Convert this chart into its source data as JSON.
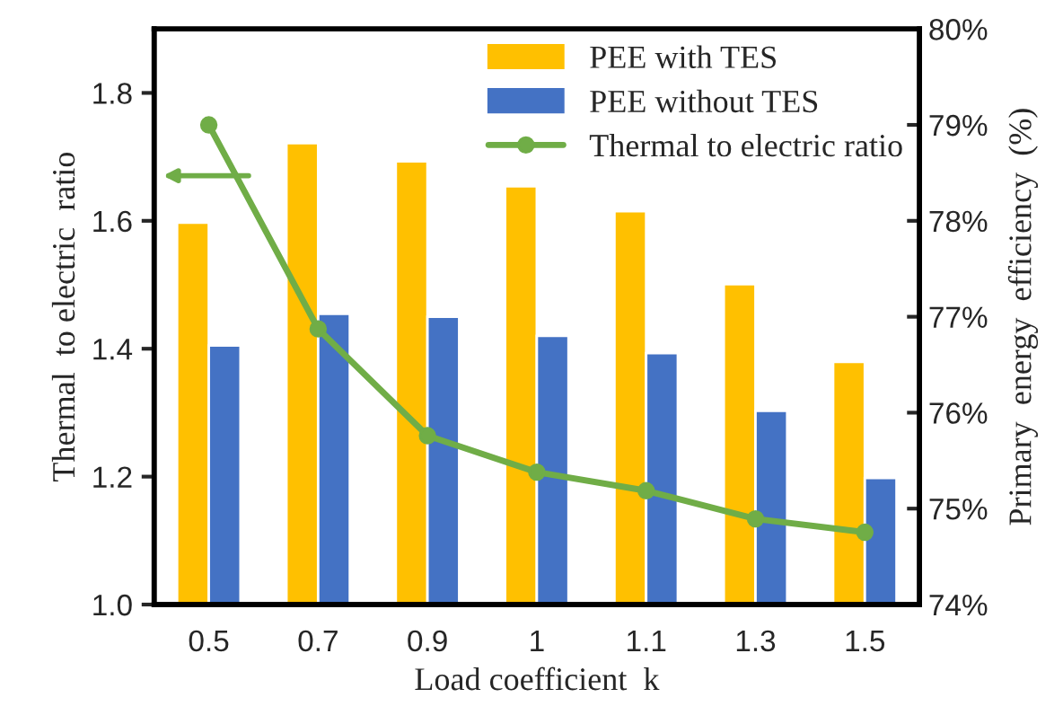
{
  "chart_data": {
    "type": "bar",
    "xlabel": "Load coefficient  k",
    "ylabel": "Thermal  to electric  ratio",
    "y2label": "Primary  energy  efficiency  (%)",
    "categories": [
      "0.5",
      "0.7",
      "0.9",
      "1",
      "1.1",
      "1.3",
      "1.5"
    ],
    "series": [
      {
        "name": "PEE with TES",
        "axis": "y2",
        "color": "#ffc000",
        "values": [
          77.98,
          78.81,
          78.62,
          78.36,
          78.1,
          77.34,
          76.53
        ]
      },
      {
        "name": "PEE without TES",
        "axis": "y2",
        "color": "#4472c4",
        "values": [
          76.7,
          77.03,
          77.0,
          76.8,
          76.62,
          76.02,
          75.32
        ]
      },
      {
        "name": "Thermal to electric ratio",
        "type": "line",
        "color": "#70ad47",
        "marker": "circle",
        "line_style": "solid",
        "values": [
          1.75,
          1.431,
          1.264,
          1.207,
          1.178,
          1.134,
          1.113
        ]
      }
    ],
    "ylim": [
      1.0,
      1.9
    ],
    "yticks": [
      {
        "value": 1.0,
        "label": "1.0"
      },
      1.2,
      1.4,
      1.6,
      1.8
    ],
    "y2lim": [
      74,
      80
    ],
    "y2ticks": [
      {
        "value": 74,
        "label": "74%"
      },
      {
        "value": 75,
        "label": "75%"
      },
      {
        "value": 76,
        "label": "76%"
      },
      {
        "value": 77,
        "label": "77%"
      },
      {
        "value": 78,
        "label": "78%"
      },
      {
        "value": 79,
        "label": "79%"
      },
      {
        "value": 80,
        "label": "80%"
      }
    ],
    "legend": "top right",
    "grid": false
  }
}
